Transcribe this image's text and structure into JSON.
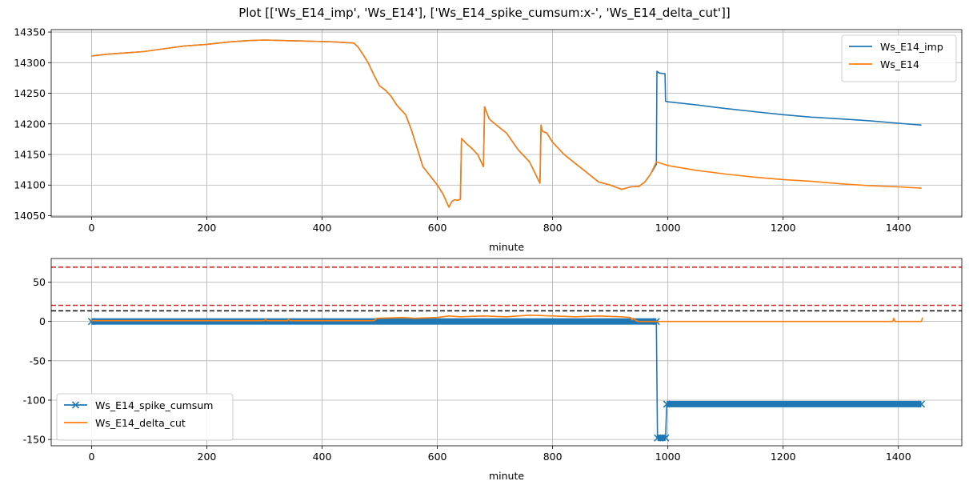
{
  "figure": {
    "suptitle": "Plot [['Ws_E14_imp', 'Ws_E14'], ['Ws_E14_spike_cumsum:x-', 'Ws_E14_delta_cut']]"
  },
  "chart_data": [
    {
      "type": "line",
      "title": "",
      "xlabel": "minute",
      "ylabel": "",
      "xlim": [
        -70,
        1510
      ],
      "ylim": [
        14048,
        14354
      ],
      "xticks": [
        0,
        200,
        400,
        600,
        800,
        1000,
        1200,
        1400
      ],
      "yticks": [
        14050,
        14100,
        14150,
        14200,
        14250,
        14300,
        14350
      ],
      "grid": true,
      "legend": "upper right",
      "series": [
        {
          "name": "Ws_E14_imp",
          "color": "#1f77b4",
          "x": [
            0,
            30,
            60,
            90,
            120,
            160,
            200,
            240,
            270,
            300,
            340,
            380,
            420,
            455,
            462,
            470,
            480,
            490,
            500,
            510,
            520,
            530,
            545,
            555,
            565,
            575,
            585,
            600,
            610,
            620,
            625,
            630,
            635,
            640,
            642,
            650,
            660,
            670,
            680,
            682,
            690,
            700,
            720,
            740,
            760,
            778,
            780,
            782,
            790,
            800,
            820,
            840,
            860,
            880,
            900,
            920,
            935,
            950,
            960,
            970,
            980,
            981,
            985,
            995,
            996,
            1000,
            1050,
            1100,
            1150,
            1200,
            1250,
            1300,
            1350,
            1400,
            1440
          ],
          "y": [
            14311,
            14314,
            14316,
            14318,
            14322,
            14327,
            14330,
            14334,
            14336,
            14337,
            14336,
            14335,
            14334,
            14332,
            14326,
            14315,
            14300,
            14280,
            14262,
            14255,
            14245,
            14230,
            14215,
            14190,
            14160,
            14130,
            14118,
            14100,
            14085,
            14064,
            14073,
            14076,
            14075,
            14077,
            14176,
            14168,
            14160,
            14150,
            14130,
            14228,
            14208,
            14200,
            14185,
            14158,
            14138,
            14103,
            14198,
            14188,
            14185,
            14170,
            14150,
            14135,
            14120,
            14105,
            14100,
            14093,
            14097,
            14098,
            14105,
            14118,
            14134,
            14286,
            14283,
            14282,
            14237,
            14236,
            14231,
            14225,
            14220,
            14215,
            14211,
            14208,
            14205,
            14201,
            14198
          ]
        },
        {
          "name": "Ws_E14",
          "color": "#ff7f0e",
          "x": [
            0,
            30,
            60,
            90,
            120,
            160,
            200,
            240,
            270,
            300,
            340,
            380,
            420,
            455,
            462,
            470,
            480,
            490,
            500,
            510,
            520,
            530,
            545,
            555,
            565,
            575,
            585,
            600,
            610,
            620,
            625,
            630,
            635,
            640,
            642,
            650,
            660,
            670,
            680,
            682,
            690,
            700,
            720,
            740,
            760,
            778,
            780,
            782,
            790,
            800,
            820,
            840,
            860,
            880,
            900,
            920,
            935,
            950,
            960,
            970,
            980,
            990,
            1000,
            1050,
            1100,
            1150,
            1200,
            1250,
            1300,
            1350,
            1400,
            1440
          ],
          "y": [
            14311,
            14314,
            14316,
            14318,
            14322,
            14327,
            14330,
            14334,
            14336,
            14337,
            14336,
            14335,
            14334,
            14332,
            14326,
            14315,
            14300,
            14280,
            14262,
            14255,
            14245,
            14230,
            14215,
            14190,
            14160,
            14130,
            14118,
            14100,
            14085,
            14064,
            14073,
            14076,
            14075,
            14077,
            14176,
            14168,
            14160,
            14150,
            14130,
            14228,
            14208,
            14200,
            14185,
            14158,
            14138,
            14103,
            14198,
            14188,
            14185,
            14170,
            14150,
            14135,
            14120,
            14105,
            14100,
            14093,
            14097,
            14098,
            14105,
            14118,
            14138,
            14135,
            14132,
            14124,
            14118,
            14113,
            14109,
            14106,
            14102,
            14099,
            14097,
            14095
          ]
        }
      ]
    },
    {
      "type": "line",
      "title": "",
      "xlabel": "minute",
      "ylabel": "",
      "xlim": [
        -70,
        1510
      ],
      "ylim": [
        -158,
        80
      ],
      "xticks": [
        0,
        200,
        400,
        600,
        800,
        1000,
        1200,
        1400
      ],
      "yticks": [
        50,
        0,
        -50,
        -100,
        -150
      ],
      "ytick_labels": [
        "50",
        "0",
        "-50",
        "-100",
        "-150"
      ],
      "grid": true,
      "legend": "lower left",
      "hlines": [
        {
          "y": 69,
          "color": "#d62728",
          "style": "dashed"
        },
        {
          "y": 20.5,
          "color": "#d62728",
          "style": "dashed"
        },
        {
          "y": 13.5,
          "color": "#000000",
          "style": "dashed"
        }
      ],
      "series": [
        {
          "name": "Ws_E14_spike_cumsum",
          "color": "#1f77b4",
          "marker": "x",
          "segments": [
            {
              "x": [
                0,
                980
              ],
              "y": [
                0,
                0
              ],
              "thick": false
            },
            {
              "x": [
                980,
                982
              ],
              "y": [
                0,
                -148
              ],
              "thick": false
            },
            {
              "x": [
                982,
                996
              ],
              "y": [
                -148,
                -148
              ],
              "thick": true
            },
            {
              "x": [
                996,
                998
              ],
              "y": [
                -148,
                -105
              ],
              "thick": false
            },
            {
              "x": [
                998,
                1440
              ],
              "y": [
                -105,
                -105
              ],
              "thick": true
            }
          ],
          "band_extent": [
            [
              0,
              980
            ],
            [
              982,
              996
            ],
            [
              998,
              1440
            ]
          ]
        },
        {
          "name": "Ws_E14_delta_cut",
          "color": "#ff7f0e",
          "x": [
            0,
            300,
            302,
            304,
            340,
            342,
            344,
            490,
            495,
            540,
            560,
            600,
            620,
            640,
            680,
            720,
            760,
            800,
            840,
            880,
            920,
            935,
            938,
            940,
            945,
            950,
            960,
            980,
            990,
            1000,
            1390,
            1392,
            1394,
            1440,
            1442
          ],
          "y": [
            1,
            1,
            3,
            1,
            1,
            3,
            1,
            1,
            4,
            5,
            4,
            5,
            7,
            6,
            7,
            6,
            8,
            7,
            6,
            7,
            6,
            5,
            2,
            4,
            1,
            0,
            0,
            0,
            0,
            0,
            0,
            4,
            0,
            0,
            5
          ]
        }
      ]
    }
  ]
}
